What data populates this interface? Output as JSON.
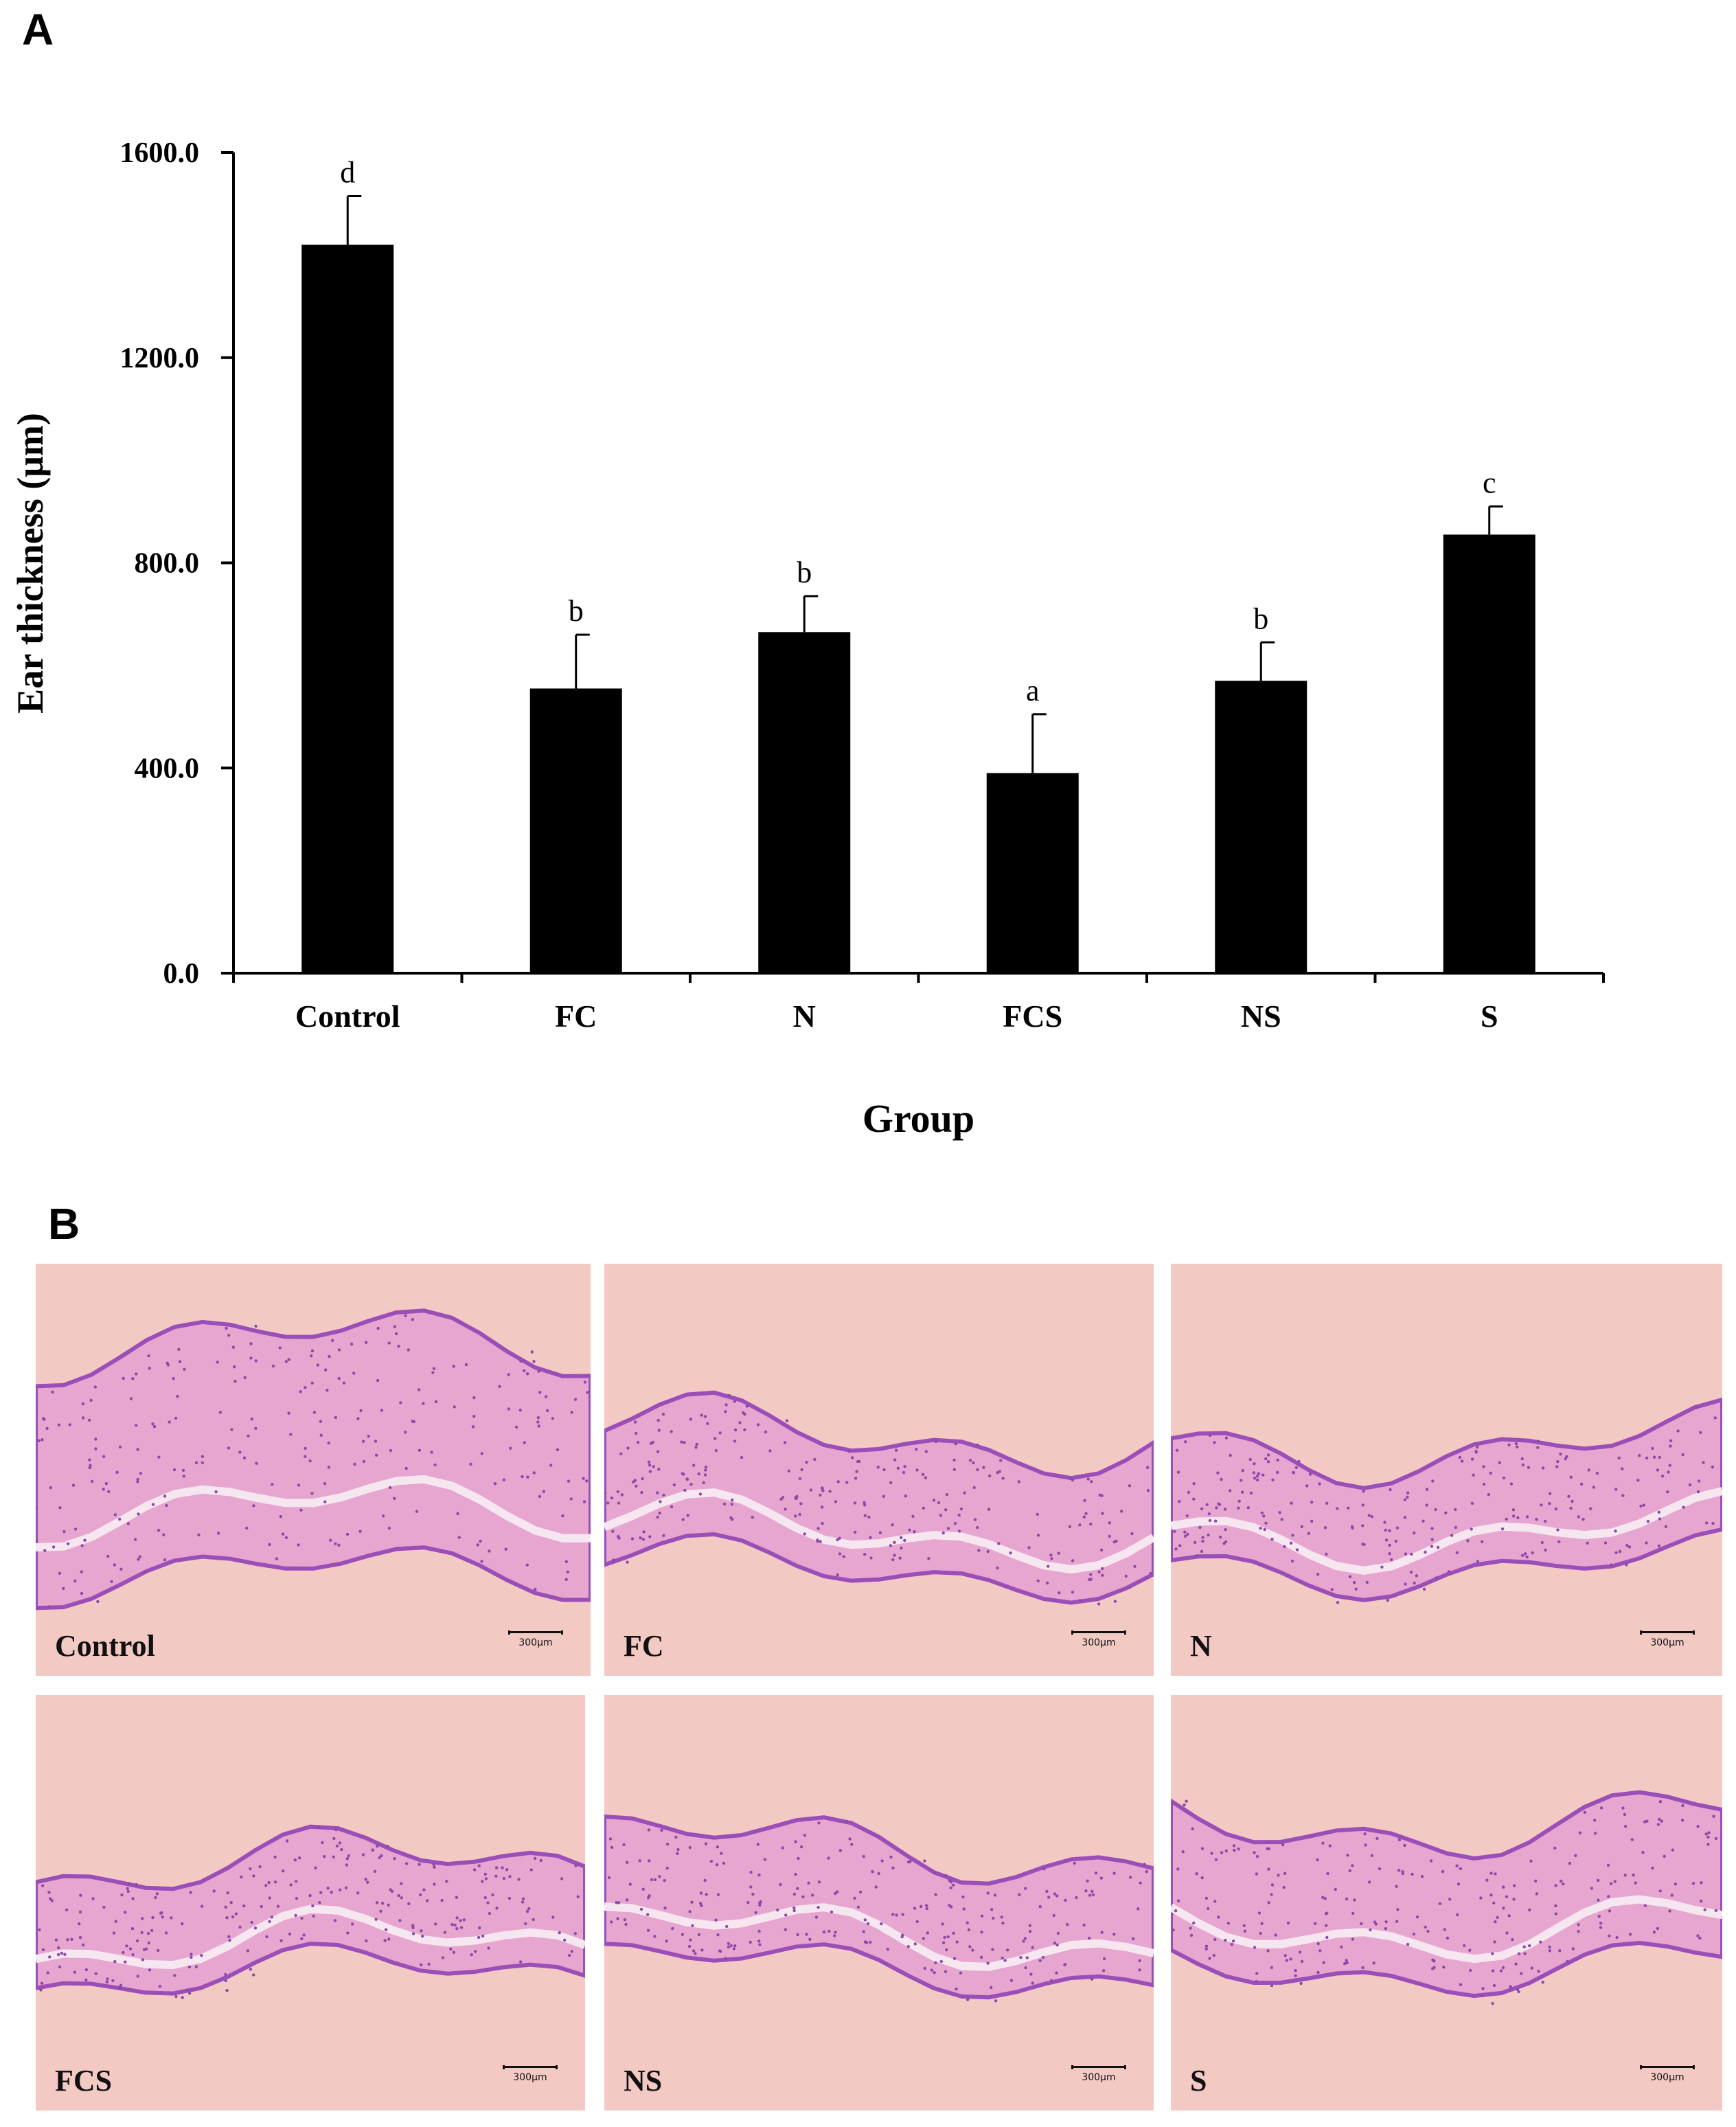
{
  "panel_a_label": "A",
  "panel_b_label": "B",
  "chart_data": {
    "type": "bar",
    "xlabel": "Group",
    "ylabel": "Ear thickness (μm)",
    "ylim": [
      0,
      1600
    ],
    "yticks": [
      "0.0",
      "400.0",
      "800.0",
      "1200.0",
      "1600.0"
    ],
    "categories": [
      "Control",
      "FC",
      "N",
      "FCS",
      "NS",
      "S"
    ],
    "values": [
      1420,
      555,
      665,
      390,
      570,
      855
    ],
    "errors": [
      95,
      105,
      70,
      115,
      75,
      55
    ],
    "significance": [
      "d",
      "b",
      "b",
      "a",
      "b",
      "c"
    ],
    "bar_color": "#000000",
    "grid": false
  },
  "micrographs": [
    {
      "label": "Control",
      "scale": "300μm"
    },
    {
      "label": "FC",
      "scale": "300μm"
    },
    {
      "label": "N",
      "scale": "300μm"
    },
    {
      "label": "FCS",
      "scale": "300μm"
    },
    {
      "label": "NS",
      "scale": "300μm"
    },
    {
      "label": "S",
      "scale": "300μm"
    }
  ]
}
